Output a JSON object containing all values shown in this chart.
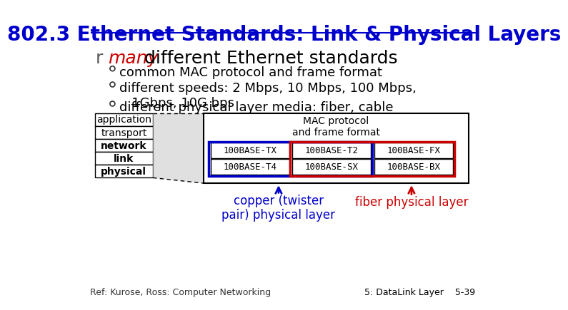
{
  "title": "802.3 Ethernet Standards: Link & Physical Layers",
  "title_color": "#0000CC",
  "title_fontsize": 20,
  "bg_color": "#FFFFFF",
  "bullet1_prefix": "many",
  "bullet1_rest": " different Ethernet standards",
  "bullet1_prefix_color": "#CC0000",
  "bullet1_color": "#000000",
  "bullet1_fontsize": 18,
  "sub_bullets": [
    "common MAC protocol and frame format",
    "different speeds: 2 Mbps, 10 Mbps, 100 Mbps,\n   1Gbps, 10G bps",
    "different physical layer media: fiber, cable"
  ],
  "sub_bullet_fontsize": 13,
  "layers": [
    "application",
    "transport",
    "network",
    "link",
    "physical"
  ],
  "mac_label": "MAC protocol\nand frame format",
  "cells_row1": [
    "100BASE-TX",
    "100BASE-T2",
    "100BASE-FX"
  ],
  "cells_row2": [
    "100BASE-T4",
    "100BASE-SX",
    "100BASE-BX"
  ],
  "copper_label": "copper (twister\npair) physical layer",
  "fiber_label": "fiber physical layer",
  "copper_color": "#0000CC",
  "fiber_color": "#CC0000",
  "blue_box_color": "#0000CC",
  "red_box_color": "#CC0000",
  "ref_text": "Ref: Kurose, Ross: Computer Networking",
  "page_text": "5: DataLink Layer    5-39"
}
